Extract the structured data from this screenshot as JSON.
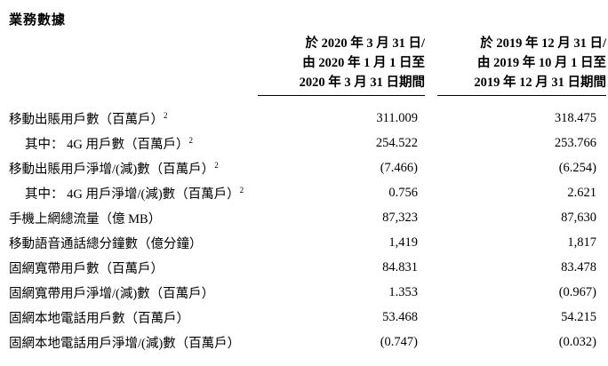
{
  "page": {
    "title": "業務數據"
  },
  "table": {
    "columns": [
      {
        "lines": [
          "於 2020 年 3 月 31 日/",
          "由 2020 年 1 月 1 日至",
          "2020 年 3 月 31 日期間"
        ]
      },
      {
        "lines": [
          "於 2019 年 12 月 31 日/",
          "由 2019 年 10 月 1 日至",
          "2019 年 12 月 31 日期間"
        ]
      }
    ],
    "rows": [
      {
        "label": "移動出賬用戶數（百萬戶）",
        "sup": "2",
        "v2020": "311.009",
        "v2019": "318.475"
      },
      {
        "label": "其中： 4G 用戶數（百萬戶）",
        "sup": "2",
        "v2020": "254.522",
        "v2019": "253.766"
      },
      {
        "label": "移動出賬用戶淨增/(減)數（百萬戶）",
        "sup": "2",
        "v2020": "(7.466)",
        "v2019": "(6.254)"
      },
      {
        "label": "其中： 4G 用戶淨增/(減)數（百萬戶）",
        "sup": "2",
        "v2020": "0.756",
        "v2019": "2.621"
      },
      {
        "label": "手機上網總流量（億 MB）",
        "sup": "",
        "v2020": "87,323",
        "v2019": "87,630"
      },
      {
        "label": "移動語音通話總分鐘數（億分鐘）",
        "sup": "",
        "v2020": "1,419",
        "v2019": "1,817"
      },
      {
        "label": "固網寬帶用戶數（百萬戶）",
        "sup": "",
        "v2020": "84.831",
        "v2019": "83.478"
      },
      {
        "label": "固網寬帶用戶淨增/(減)數（百萬戶）",
        "sup": "",
        "v2020": "1.353",
        "v2019": "(0.967)"
      },
      {
        "label": "固網本地電話用戶數（百萬戶）",
        "sup": "",
        "v2020": "53.468",
        "v2019": "54.215"
      },
      {
        "label": "固網本地電話用戶淨增/(減)數（百萬戶）",
        "sup": "",
        "v2020": "(0.747)",
        "v2019": "(0.032)"
      }
    ]
  },
  "colors": {
    "text": "#000000",
    "background": "#ffffff",
    "rule": "#000000"
  }
}
